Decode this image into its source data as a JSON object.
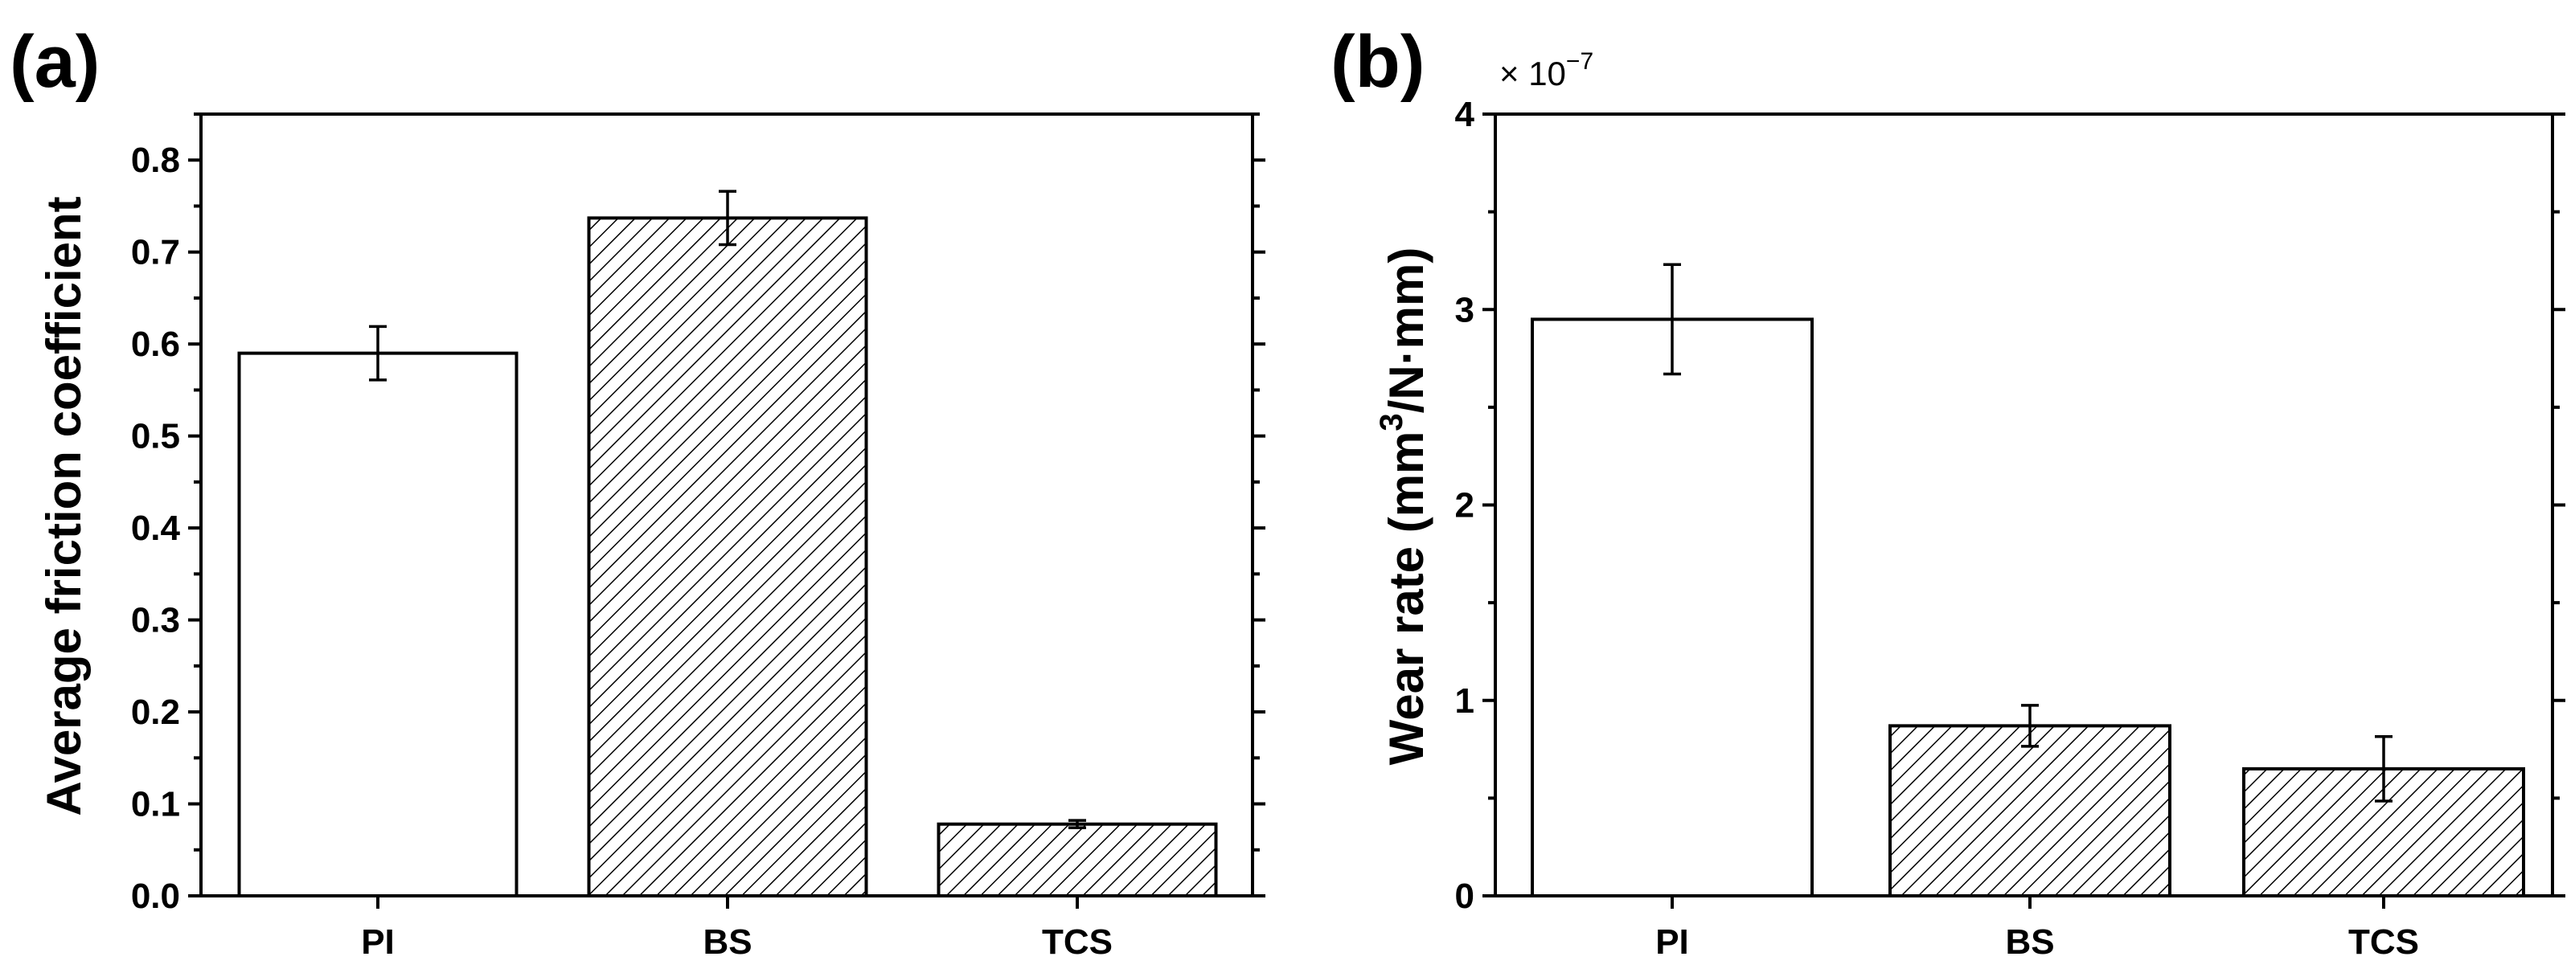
{
  "chart_data": [
    {
      "type": "bar",
      "panel_label": "(a)",
      "categories": [
        "PI",
        "BS",
        "TCS"
      ],
      "values": [
        0.59,
        0.737,
        0.078
      ],
      "errors": [
        0.029,
        0.029,
        0.004
      ],
      "fills": [
        "white",
        "hatch",
        "hatch"
      ],
      "ylabel": "Average friction coefficient",
      "xlabel": "",
      "ylim": [
        0,
        0.85
      ],
      "yticks": [
        0.0,
        0.1,
        0.2,
        0.3,
        0.4,
        0.5,
        0.6,
        0.7,
        0.8
      ],
      "ytick_labels": [
        "0.0",
        "0.1",
        "0.2",
        "0.3",
        "0.4",
        "0.5",
        "0.6",
        "0.7",
        "0.8"
      ],
      "y_minor_step": 0.05,
      "grid": false
    },
    {
      "type": "bar",
      "panel_label": "(b)",
      "categories": [
        "PI",
        "BS",
        "TCS"
      ],
      "values": [
        2.95,
        0.87,
        0.65
      ],
      "errors": [
        0.28,
        0.105,
        0.165
      ],
      "fills": [
        "white",
        "hatch",
        "hatch"
      ],
      "ylabel_main": "Wear rate (mm",
      "ylabel_sup": "3",
      "ylabel_tail": "/N·mm)",
      "multiplier_prefix": "× 10",
      "multiplier_exp": "−7",
      "xlabel": "",
      "ylim": [
        0,
        4
      ],
      "yticks": [
        0,
        1,
        2,
        3,
        4
      ],
      "ytick_labels": [
        "0",
        "1",
        "2",
        "3",
        "4"
      ],
      "y_minor_step": 0.5,
      "grid": false
    }
  ]
}
